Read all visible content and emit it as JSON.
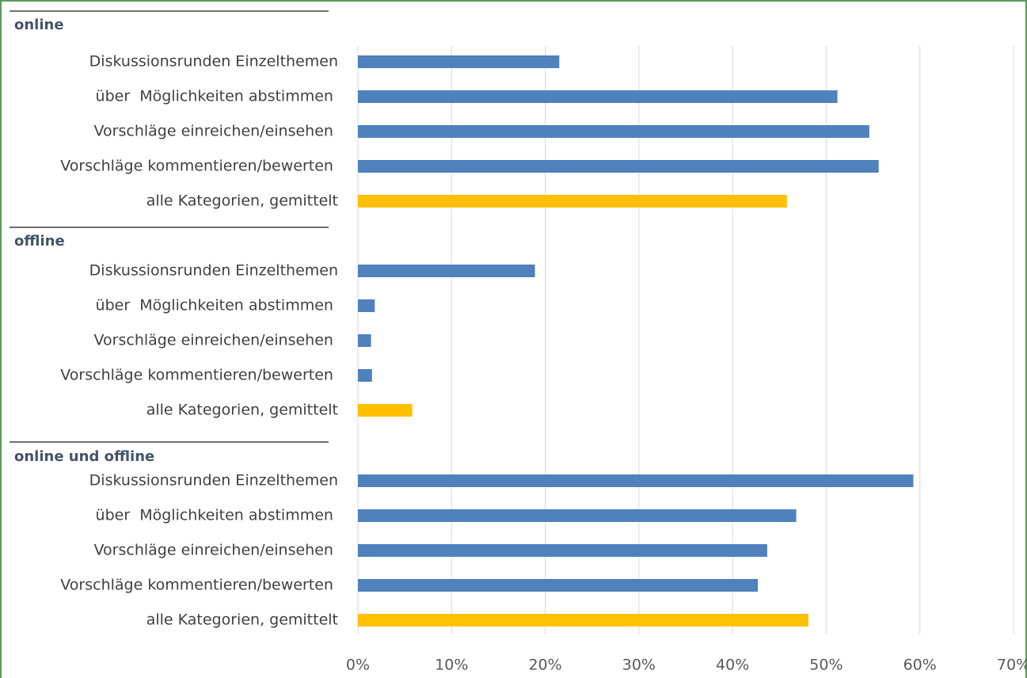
{
  "chart_data": {
    "type": "bar",
    "orientation": "horizontal",
    "xlim": [
      0,
      70
    ],
    "xticks": [
      {
        "value": 0,
        "label": "0%"
      },
      {
        "value": 10,
        "label": "10%"
      },
      {
        "value": 20,
        "label": "20%"
      },
      {
        "value": 30,
        "label": "30%"
      },
      {
        "value": 40,
        "label": "40%"
      },
      {
        "value": 50,
        "label": "50%"
      },
      {
        "value": 60,
        "label": "60%"
      },
      {
        "value": 70,
        "label": "70%"
      }
    ],
    "grid": true,
    "groups": [
      {
        "title": "online",
        "categories": [
          "Diskussionsrunden Einzelthemen",
          "über  Möglichkeiten abstimmen ",
          "Vorschläge einreichen/einsehen ",
          "Vorschläge kommentieren/bewerten ",
          "alle Kategorien, gemittelt"
        ],
        "values": [
          21.5,
          51.2,
          54.6,
          55.6,
          45.8
        ],
        "colors": [
          "#4f81bd",
          "#4f81bd",
          "#4f81bd",
          "#4f81bd",
          "#ffc000"
        ]
      },
      {
        "title": "offline",
        "categories": [
          "Diskussionsrunden Einzelthemen",
          "über  Möglichkeiten abstimmen ",
          "Vorschläge einreichen/einsehen ",
          "Vorschläge kommentieren/bewerten ",
          "alle Kategorien, gemittelt"
        ],
        "values": [
          18.9,
          1.8,
          1.4,
          1.5,
          5.8
        ],
        "colors": [
          "#4f81bd",
          "#4f81bd",
          "#4f81bd",
          "#4f81bd",
          "#ffc000"
        ]
      },
      {
        "title": "online und offline",
        "categories": [
          "Diskussionsrunden Einzelthemen",
          "über  Möglichkeiten abstimmen ",
          "Vorschläge einreichen/einsehen ",
          "Vorschläge kommentieren/bewerten ",
          "alle Kategorien, gemittelt"
        ],
        "values": [
          59.3,
          46.8,
          43.7,
          42.7,
          48.1
        ],
        "colors": [
          "#4f81bd",
          "#4f81bd",
          "#4f81bd",
          "#4f81bd",
          "#ffc000"
        ]
      }
    ]
  }
}
